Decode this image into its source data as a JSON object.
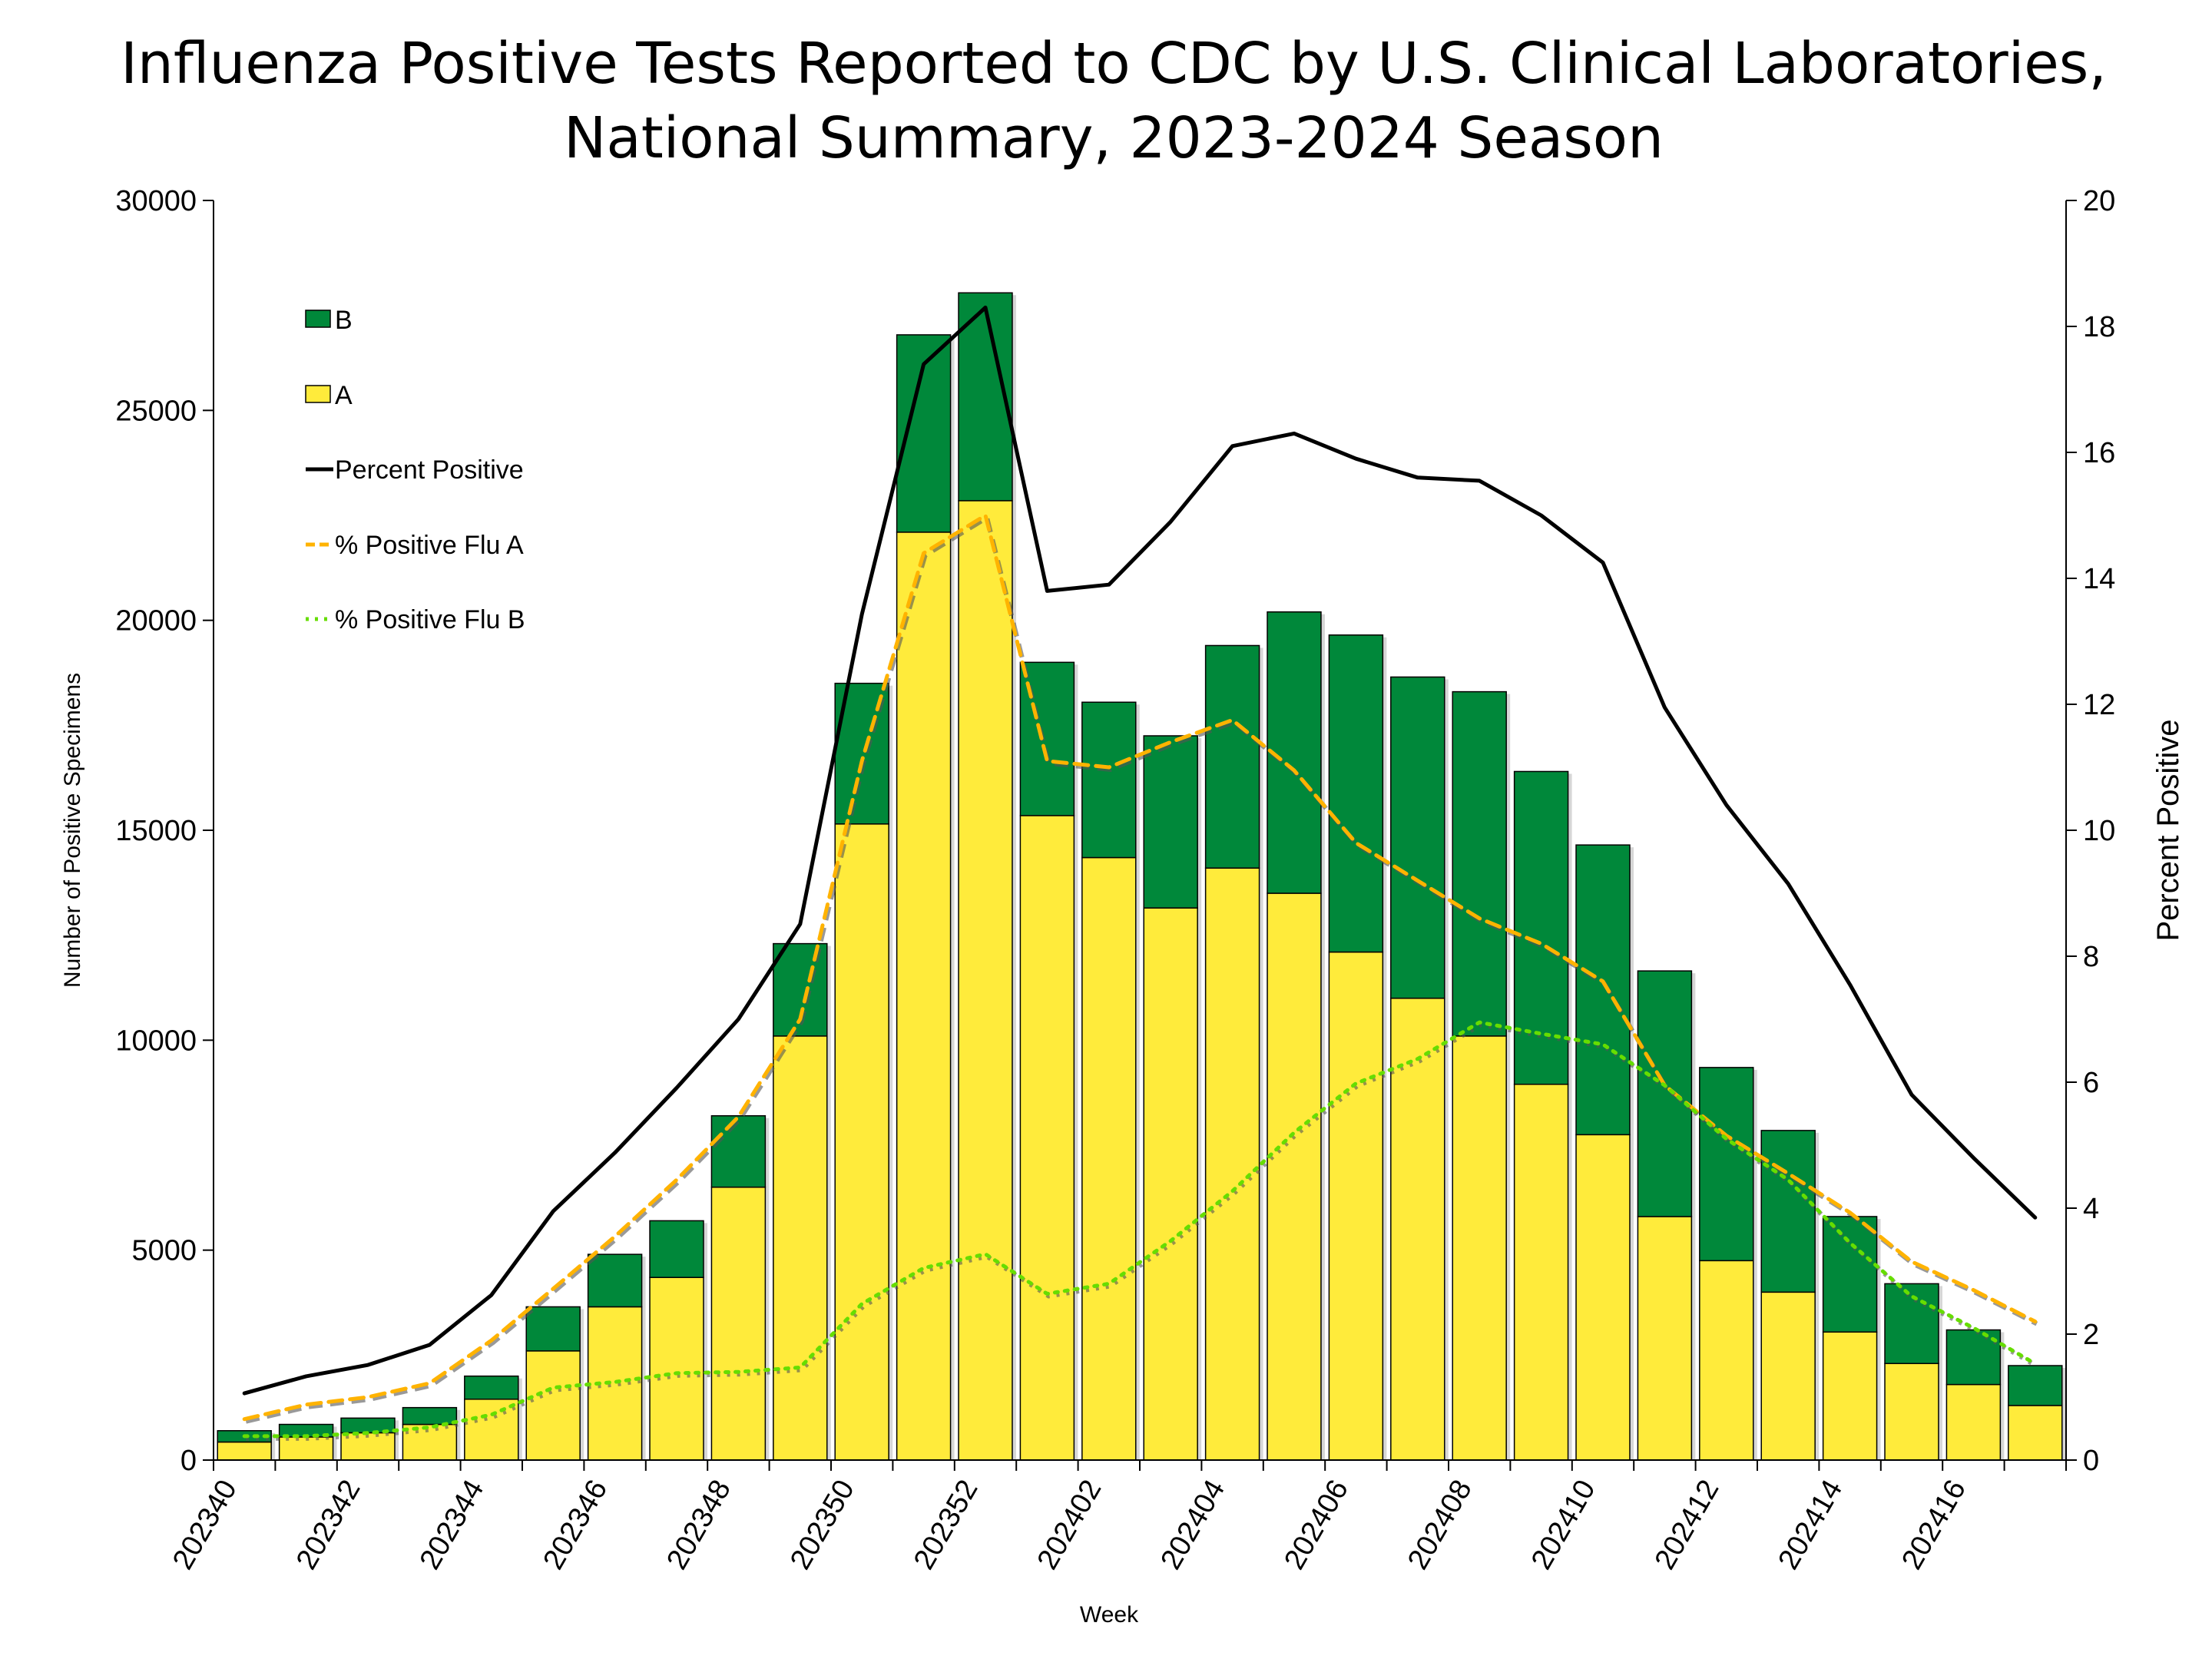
{
  "chart_data": {
    "type": "bar",
    "title_lines": [
      "Influenza Positive Tests Reported to CDC by U.S. Clinical Laboratories,",
      "National Summary, 2023-2024 Season"
    ],
    "xlabel": "Week",
    "ylabel": "Number of Positive Specimens",
    "y2label": "Percent Positive",
    "ylim": [
      0,
      30000
    ],
    "y2lim": [
      0,
      20
    ],
    "yticks": [
      0,
      5000,
      10000,
      15000,
      20000,
      25000,
      30000
    ],
    "y2ticks": [
      0,
      2,
      4,
      6,
      8,
      10,
      12,
      14,
      16,
      18,
      20
    ],
    "grid": false,
    "legend_placement": "top-left",
    "categories": [
      "202340",
      "202341",
      "202342",
      "202343",
      "202344",
      "202345",
      "202346",
      "202347",
      "202348",
      "202349",
      "202350",
      "202351",
      "202352",
      "202401",
      "202402",
      "202403",
      "202404",
      "202405",
      "202406",
      "202407",
      "202408",
      "202409",
      "202410",
      "202411",
      "202412",
      "202413",
      "202414",
      "202415",
      "202416",
      "202417"
    ],
    "tick_labels": [
      "202340",
      "202342",
      "202344",
      "202346",
      "202348",
      "202350",
      "202352",
      "202402",
      "202404",
      "202406",
      "202408",
      "202410",
      "202412",
      "202414",
      "202416"
    ],
    "bar_series": [
      {
        "name": "A",
        "color": "#FFEB3B",
        "values": [
          430,
          550,
          650,
          850,
          1450,
          2600,
          3650,
          4350,
          6500,
          10100,
          15150,
          22100,
          22850,
          15350,
          14350,
          13150,
          14100,
          13500,
          12100,
          11000,
          10100,
          8950,
          7750,
          5800,
          4750,
          4000,
          3050,
          2300,
          1800,
          1300
        ]
      },
      {
        "name": "B",
        "color": "#00883A",
        "values": [
          270,
          300,
          350,
          400,
          550,
          1050,
          1250,
          1350,
          1700,
          2200,
          3350,
          4700,
          4950,
          3650,
          3700,
          4100,
          5300,
          6700,
          7550,
          7650,
          8200,
          7450,
          6900,
          5850,
          4600,
          3850,
          2750,
          1900,
          1300,
          950
        ]
      }
    ],
    "line_series": [
      {
        "name": "Percent Positive",
        "color": "#000000",
        "style": "solid",
        "values": [
          1.06,
          1.33,
          1.51,
          1.83,
          2.62,
          3.95,
          4.88,
          5.91,
          7.0,
          8.51,
          13.43,
          17.4,
          18.3,
          13.8,
          13.9,
          14.9,
          16.1,
          16.3,
          15.9,
          15.6,
          15.55,
          15.0,
          14.25,
          11.95,
          10.4,
          9.15,
          7.55,
          5.8,
          4.8,
          3.85
        ]
      },
      {
        "name": "% Positive Flu A",
        "color": "#FFB300",
        "style": "dashed",
        "values": [
          0.65,
          0.88,
          1.0,
          1.22,
          1.9,
          2.72,
          3.55,
          4.45,
          5.45,
          7.0,
          11.1,
          14.4,
          15.0,
          11.1,
          11.0,
          11.4,
          11.75,
          10.95,
          9.8,
          9.2,
          8.6,
          8.2,
          7.6,
          5.95,
          5.15,
          4.55,
          3.93,
          3.15,
          2.7,
          2.2
        ]
      },
      {
        "name": "% Positive Flu B",
        "color": "#66DD00",
        "style": "dotted",
        "values": [
          0.38,
          0.38,
          0.43,
          0.52,
          0.72,
          1.15,
          1.24,
          1.38,
          1.4,
          1.47,
          2.48,
          3.05,
          3.27,
          2.64,
          2.8,
          3.48,
          4.27,
          5.2,
          5.98,
          6.37,
          6.95,
          6.77,
          6.6,
          5.95,
          5.1,
          4.45,
          3.45,
          2.6,
          2.1,
          1.53
        ]
      }
    ],
    "legend": [
      "B",
      "A",
      "Percent Positive",
      "% Positive Flu A",
      "% Positive Flu B"
    ]
  }
}
